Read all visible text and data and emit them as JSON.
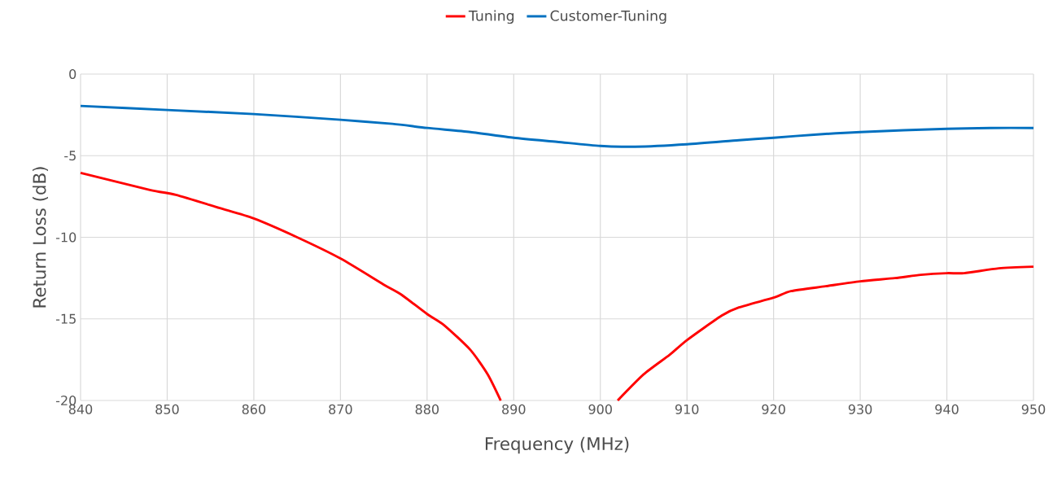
{
  "chart_data": {
    "type": "line",
    "xlabel": "Frequency (MHz)",
    "ylabel": "Return Loss (dB)",
    "xlim": [
      840,
      950
    ],
    "ylim": [
      -20,
      0
    ],
    "xticks": [
      840,
      850,
      860,
      870,
      880,
      890,
      900,
      910,
      920,
      930,
      940,
      950
    ],
    "yticks": [
      -20,
      -15,
      -10,
      -5,
      0
    ],
    "grid": true,
    "legend": "top",
    "marker": "none",
    "line_style": "solid",
    "series": [
      {
        "name": "Tuning",
        "color": "#ff0000",
        "x": [
          840,
          848,
          851,
          856,
          860,
          865,
          870,
          875,
          877,
          880,
          882,
          885,
          887,
          888.5,
          895,
          902,
          905,
          908,
          910,
          914,
          916,
          920,
          922,
          926,
          930,
          934,
          937,
          940,
          942,
          946,
          950
        ],
        "values": [
          -6.05,
          -7.1,
          -7.4,
          -8.2,
          -8.85,
          -10.0,
          -11.3,
          -12.9,
          -13.5,
          -14.7,
          -15.4,
          -16.9,
          -18.4,
          -20,
          null,
          -20,
          -18.4,
          -17.2,
          -16.3,
          -14.8,
          -14.3,
          -13.7,
          -13.3,
          -13.0,
          -12.7,
          -12.5,
          -12.3,
          -12.2,
          -12.2,
          -11.9,
          -11.8
        ]
      },
      {
        "name": "Customer-Tuning",
        "color": "#0070c0",
        "x": [
          840,
          850,
          860,
          870,
          876,
          880,
          885,
          890,
          895,
          900,
          904,
          910,
          916,
          920,
          925,
          930,
          940,
          945,
          950
        ],
        "values": [
          -1.95,
          -2.2,
          -2.45,
          -2.8,
          -3.05,
          -3.3,
          -3.55,
          -3.9,
          -4.15,
          -4.4,
          -4.45,
          -4.3,
          -4.05,
          -3.9,
          -3.7,
          -3.55,
          -3.35,
          -3.3,
          -3.3
        ]
      }
    ]
  }
}
